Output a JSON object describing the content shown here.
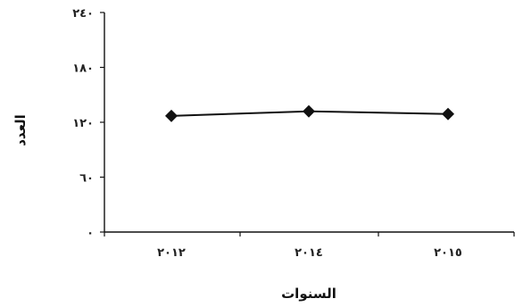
{
  "chart_data": {
    "type": "line",
    "x": [
      "٢٠١٢",
      "٢٠١٤",
      "٢٠١٥"
    ],
    "series": [
      {
        "values": [
          127,
          132,
          129
        ]
      }
    ],
    "ylim": [
      0,
      240
    ],
    "yticks": [
      0,
      60,
      120,
      180,
      240
    ],
    "ytick_labels": [
      "٠",
      "٦٠",
      "١٢٠",
      "١٨٠",
      "٢٤٠"
    ],
    "xlabel": "السنوات",
    "ylabel": "العدد",
    "grid": false,
    "marker": "diamond",
    "color": "#111111"
  }
}
